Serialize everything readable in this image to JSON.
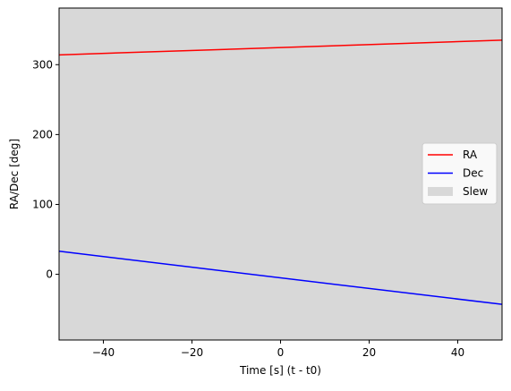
{
  "chart_data": {
    "type": "line",
    "title": "",
    "xlabel": "Time [s] (t - t0)",
    "ylabel": "RA/Dec [deg]",
    "xlim": [
      -50,
      50
    ],
    "ylim": [
      -94,
      381
    ],
    "xticks": [
      -40,
      -20,
      0,
      20,
      40
    ],
    "xtick_labels": [
      "−40",
      "−20",
      "0",
      "20",
      "40"
    ],
    "yticks": [
      0,
      100,
      200,
      300
    ],
    "ytick_labels": [
      "0",
      "100",
      "200",
      "300"
    ],
    "grid": false,
    "legend_position": "center-right",
    "series": [
      {
        "name": "RA",
        "color": "#ff0000",
        "x": [
          -50,
          50
        ],
        "y": [
          314,
          335
        ]
      },
      {
        "name": "Dec",
        "color": "#0000ff",
        "x": [
          -50,
          50
        ],
        "y": [
          33,
          -43
        ]
      }
    ],
    "shaded_regions": [
      {
        "name": "Slew",
        "color": "#d8d8d8",
        "x_start": -50,
        "x_end": 50
      }
    ]
  }
}
